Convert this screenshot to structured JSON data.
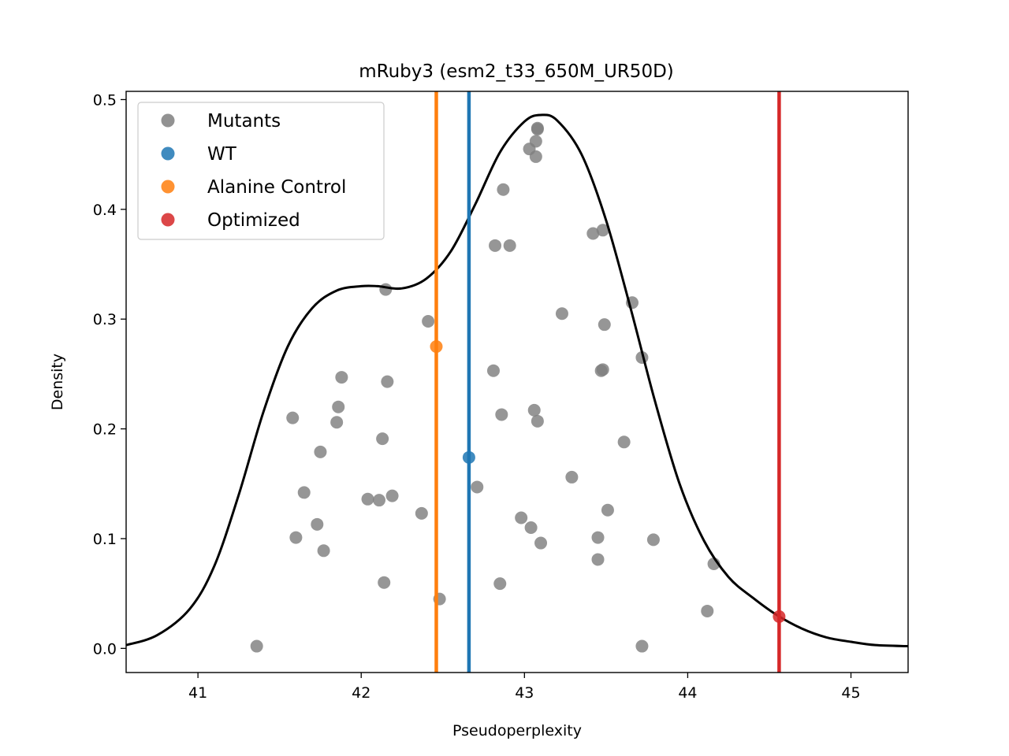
{
  "chart_data": {
    "type": "scatter",
    "title": "mRuby3 (esm2_t33_650M_UR50D)",
    "xlabel": "Pseudoperplexity",
    "ylabel": "Density",
    "xlim": [
      40.56,
      45.35
    ],
    "ylim": [
      -0.022,
      0.5075
    ],
    "x_ticks": [
      "41",
      "42",
      "43",
      "44",
      "45"
    ],
    "x_tick_values": [
      41,
      42,
      43,
      44,
      45
    ],
    "y_ticks": [
      "0.0",
      "0.1",
      "0.2",
      "0.3",
      "0.4",
      "0.5"
    ],
    "y_tick_values": [
      0.0,
      0.1,
      0.2,
      0.3,
      0.4,
      0.5
    ],
    "grid": false,
    "legend_position": "upper-left",
    "legend": [
      {
        "label": "Mutants",
        "color": "#7f7f7f"
      },
      {
        "label": "WT",
        "color": "#1f77b4"
      },
      {
        "label": "Alanine Control",
        "color": "#ff7f0e"
      },
      {
        "label": "Optimized",
        "color": "#d62728"
      }
    ],
    "mutants": {
      "color": "#7f7f7f",
      "points": [
        [
          41.36,
          0.002
        ],
        [
          41.58,
          0.21
        ],
        [
          41.6,
          0.101
        ],
        [
          41.65,
          0.142
        ],
        [
          41.73,
          0.113
        ],
        [
          41.75,
          0.179
        ],
        [
          41.77,
          0.089
        ],
        [
          41.85,
          0.206
        ],
        [
          41.86,
          0.22
        ],
        [
          41.88,
          0.247
        ],
        [
          42.04,
          0.136
        ],
        [
          42.11,
          0.135
        ],
        [
          42.13,
          0.191
        ],
        [
          42.14,
          0.06
        ],
        [
          42.15,
          0.327
        ],
        [
          42.16,
          0.243
        ],
        [
          42.19,
          0.139
        ],
        [
          42.37,
          0.123
        ],
        [
          42.41,
          0.298
        ],
        [
          42.48,
          0.045
        ],
        [
          42.71,
          0.147
        ],
        [
          42.81,
          0.253
        ],
        [
          42.82,
          0.367
        ],
        [
          42.85,
          0.059
        ],
        [
          42.86,
          0.213
        ],
        [
          42.87,
          0.418
        ],
        [
          42.91,
          0.367
        ],
        [
          42.98,
          0.119
        ],
        [
          43.03,
          0.455
        ],
        [
          43.04,
          0.11
        ],
        [
          43.06,
          0.217
        ],
        [
          43.07,
          0.462
        ],
        [
          43.07,
          0.448
        ],
        [
          43.08,
          0.207
        ],
        [
          43.08,
          0.474
        ],
        [
          43.08,
          0.473
        ],
        [
          43.1,
          0.096
        ],
        [
          43.23,
          0.305
        ],
        [
          43.29,
          0.156
        ],
        [
          43.42,
          0.378
        ],
        [
          43.45,
          0.101
        ],
        [
          43.45,
          0.081
        ],
        [
          43.47,
          0.253
        ],
        [
          43.48,
          0.381
        ],
        [
          43.48,
          0.254
        ],
        [
          43.49,
          0.295
        ],
        [
          43.51,
          0.126
        ],
        [
          43.61,
          0.188
        ],
        [
          43.66,
          0.315
        ],
        [
          43.72,
          0.002
        ],
        [
          43.72,
          0.265
        ],
        [
          43.79,
          0.099
        ],
        [
          44.12,
          0.034
        ],
        [
          44.16,
          0.077
        ]
      ]
    },
    "wt": {
      "x": 42.66,
      "y": 0.174,
      "color": "#1f77b4"
    },
    "alanine_control": {
      "x": 42.46,
      "y": 0.275,
      "color": "#ff7f0e"
    },
    "optimized": {
      "x": 44.56,
      "y": 0.029,
      "color": "#d62728"
    },
    "kde_curve": {
      "color": "#000000",
      "x": [
        40.56,
        40.75,
        40.95,
        41.1,
        41.25,
        41.4,
        41.55,
        41.7,
        41.85,
        42.0,
        42.1,
        42.25,
        42.4,
        42.55,
        42.7,
        42.85,
        43.0,
        43.1,
        43.2,
        43.35,
        43.5,
        43.65,
        43.8,
        43.95,
        44.1,
        44.25,
        44.4,
        44.55,
        44.7,
        44.85,
        45.0,
        45.15,
        45.35
      ],
      "y": [
        0.003,
        0.012,
        0.036,
        0.075,
        0.14,
        0.215,
        0.275,
        0.31,
        0.326,
        0.33,
        0.33,
        0.328,
        0.337,
        0.362,
        0.405,
        0.452,
        0.48,
        0.486,
        0.481,
        0.45,
        0.39,
        0.31,
        0.225,
        0.15,
        0.098,
        0.065,
        0.046,
        0.03,
        0.018,
        0.01,
        0.006,
        0.003,
        0.002
      ]
    }
  }
}
